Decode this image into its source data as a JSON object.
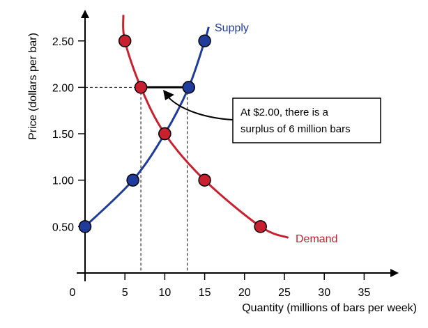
{
  "chart_data": {
    "type": "line",
    "title": "",
    "xlabel": "Quantity (millions of bars per week)",
    "ylabel": "Price (dollars per bar)",
    "xlim": [
      0,
      40
    ],
    "ylim": [
      0,
      2.75
    ],
    "x_ticks": [
      0,
      5,
      10,
      15,
      20,
      25,
      30,
      35
    ],
    "y_ticks": [
      0.5,
      1.0,
      1.5,
      2.0,
      2.5
    ],
    "x_tick_labels": [
      "0",
      "5",
      "10",
      "15",
      "20",
      "25",
      "30",
      "35"
    ],
    "y_tick_labels": [
      "0.50",
      "1.00",
      "1.50",
      "2.00",
      "2.50"
    ],
    "grid": false,
    "series": [
      {
        "name": "Supply",
        "color": "#1f3c9c",
        "points": [
          {
            "x": 0,
            "y": 0.5
          },
          {
            "x": 6,
            "y": 1.0
          },
          {
            "x": 10,
            "y": 1.5
          },
          {
            "x": 13,
            "y": 2.0
          },
          {
            "x": 15,
            "y": 2.5
          }
        ],
        "curve_extent": [
          0,
          15.5
        ]
      },
      {
        "name": "Demand",
        "color": "#c8202e",
        "points": [
          {
            "x": 5,
            "y": 2.5
          },
          {
            "x": 7,
            "y": 2.0
          },
          {
            "x": 10,
            "y": 1.5
          },
          {
            "x": 15,
            "y": 1.0
          },
          {
            "x": 22,
            "y": 0.5
          }
        ],
        "curve_extent": [
          5,
          25.5
        ]
      }
    ],
    "annotation": {
      "lines": [
        "At $2.00, there is a",
        "surplus of 6 million bars"
      ],
      "price": 2.0,
      "quantity_demanded": 7,
      "quantity_supplied": 13
    }
  }
}
